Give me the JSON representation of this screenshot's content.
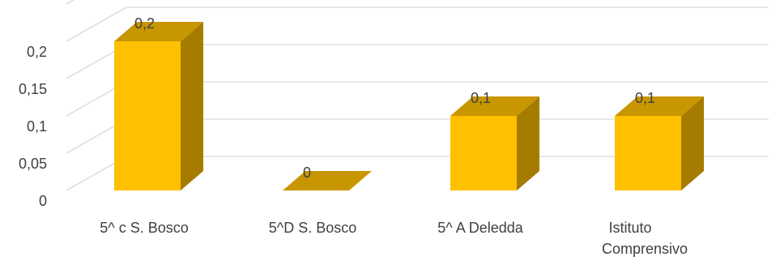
{
  "chart_data": {
    "type": "bar",
    "title": "",
    "xlabel": "",
    "ylabel": "",
    "categories": [
      [
        "5^ c S. Bosco"
      ],
      [
        "5^D S. Bosco"
      ],
      [
        "5^ A Deledda"
      ],
      [
        "Istituto",
        "Comprensivo"
      ]
    ],
    "values": [
      0.2,
      0,
      0.1,
      0.1
    ],
    "data_labels": [
      "0,2",
      "0",
      "0,1",
      "0,1"
    ],
    "ylim": [
      0,
      0.25
    ],
    "y_ticks": [
      0,
      0.05,
      0.1,
      0.15,
      0.2
    ],
    "y_tick_labels": [
      "0",
      "0,05",
      "0,1",
      "0,15",
      "0,2"
    ],
    "grid": true,
    "style": "3d",
    "colors": {
      "bar_front": "#FFC000",
      "bar_side": "#A57C00",
      "bar_top": "#C89600",
      "gridline": "#d9d9d9",
      "text": "#404040"
    }
  }
}
